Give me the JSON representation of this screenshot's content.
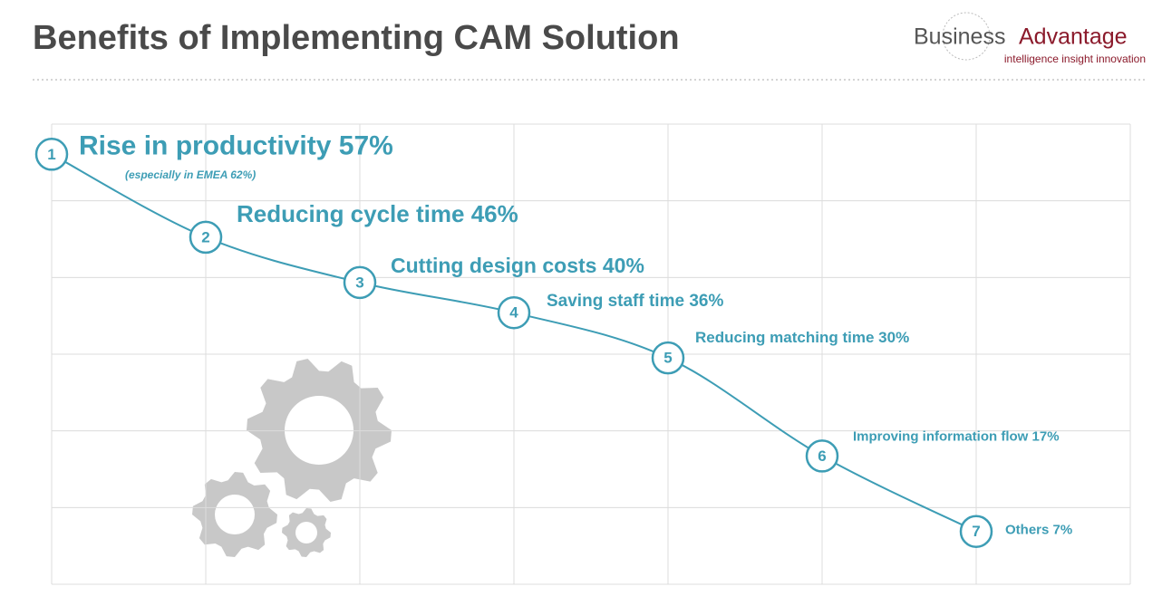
{
  "header": {
    "title": "Benefits of Implementing CAM Solution",
    "logo_name_1": "Business",
    "logo_name_2": "Advantage",
    "logo_tagline": "intelligence insight innovation"
  },
  "chart_data": {
    "type": "line",
    "categories": [
      "Rise in productivity",
      "Reducing cycle time",
      "Cutting design costs",
      "Saving staff time",
      "Reducing matching time",
      "Improving information flow",
      "Others"
    ],
    "values": [
      57,
      46,
      40,
      36,
      30,
      17,
      7
    ],
    "value_labels": [
      "57%",
      "46%",
      "40%",
      "36%",
      "30%",
      "17%",
      "7%"
    ],
    "point_labels": [
      "1",
      "2",
      "3",
      "4",
      "5",
      "6",
      "7"
    ],
    "annotation": "(especially in EMEA 62%)",
    "color": "#3d9db5",
    "ylim": [
      0,
      61
    ],
    "grid": true
  }
}
